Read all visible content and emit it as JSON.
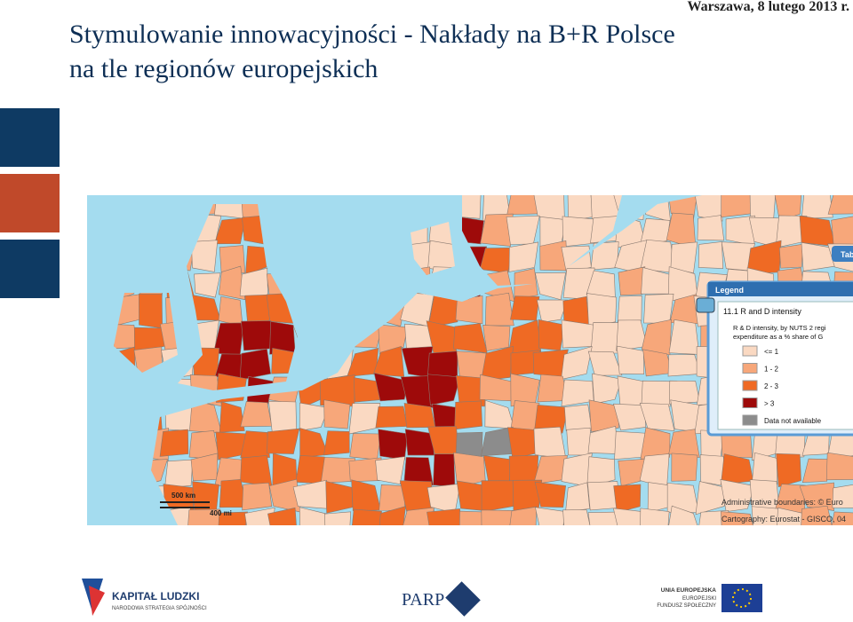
{
  "header": {
    "date": "Warszawa, 8 lutego 2013 r.",
    "title": [
      "Stymulowanie innowacyjności - Nakłady na B+R Polsce",
      "na tle regionów europejskich"
    ]
  },
  "map": {
    "tab": "Tab",
    "scale": [
      "500 km",
      "400 mi"
    ],
    "legend": {
      "title": "Legend",
      "layer": "11.1 R and D intensity",
      "description": [
        "R & D intensity, by NUTS 2 regi",
        "expenditure as a % share of G"
      ],
      "items": [
        {
          "label": "<= 1",
          "color": "#fad9c2"
        },
        {
          "label": "1 - 2",
          "color": "#f7a77a"
        },
        {
          "label": "2 - 3",
          "color": "#ef6a24"
        },
        {
          "label": "> 3",
          "color": "#9e0a0a"
        },
        {
          "label": "Data not available",
          "color": "#8c8c8c"
        }
      ]
    },
    "credits": [
      "Administrative boundaries: © Euro",
      "Cartography: Eurostat - GISCO, 04"
    ]
  },
  "footer": {
    "logos": [
      "KAPITAŁ LUDZKI",
      "NARODOWA STRATEGIA SPÓJNOŚCI",
      "PARP",
      "UNIA EUROPEJSKA",
      "EUROPEJSKI",
      "FUNDUSZ SPOŁECZNY"
    ]
  }
}
